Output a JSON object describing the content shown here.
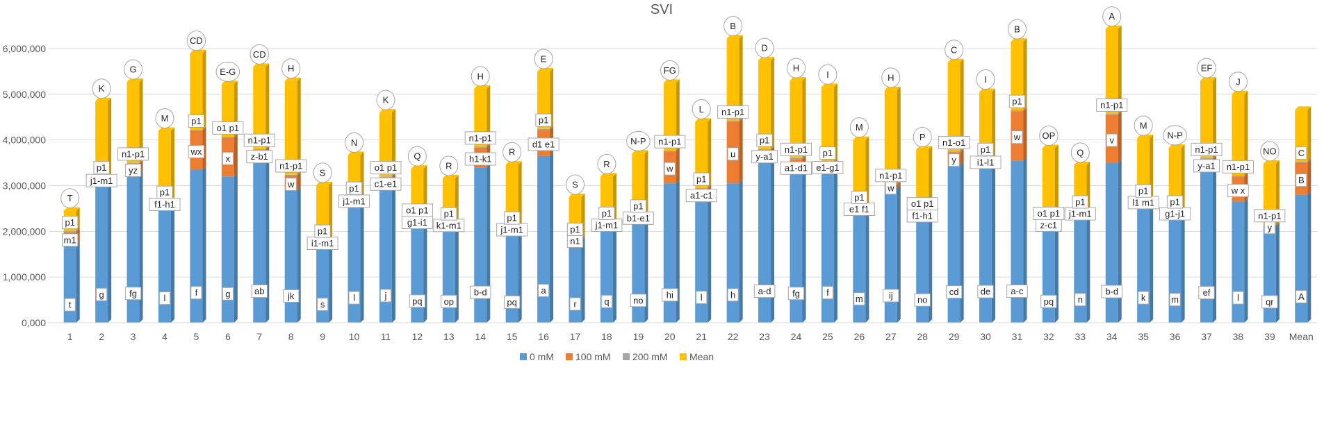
{
  "chart_data": {
    "type": "bar",
    "stacked": true,
    "title": "SVI",
    "xlabel": "",
    "ylabel": "",
    "ylim": [
      0,
      6500000
    ],
    "yticks": [
      "0,000",
      "1,000,000",
      "2,000,000",
      "3,000,000",
      "4,000,000",
      "5,000,000",
      "6,000,000"
    ],
    "categories": [
      "1",
      "2",
      "3",
      "4",
      "5",
      "6",
      "7",
      "8",
      "9",
      "10",
      "11",
      "12",
      "13",
      "14",
      "15",
      "16",
      "17",
      "18",
      "19",
      "20",
      "21",
      "22",
      "23",
      "24",
      "25",
      "26",
      "27",
      "28",
      "29",
      "30",
      "31",
      "32",
      "33",
      "34",
      "35",
      "36",
      "37",
      "38",
      "39",
      "Mean"
    ],
    "series": [
      {
        "name": "0 mM",
        "color": "#5b9bd5",
        "values": [
          1700000,
          3100000,
          3250000,
          2600000,
          3350000,
          3200000,
          3550000,
          2900000,
          1750000,
          2650000,
          2950000,
          2200000,
          2150000,
          3400000,
          2050000,
          3650000,
          1800000,
          2150000,
          2300000,
          3050000,
          2700000,
          3050000,
          3550000,
          3250000,
          3350000,
          2500000,
          2950000,
          2350000,
          3450000,
          3500000,
          3550000,
          2150000,
          2400000,
          3500000,
          2650000,
          2400000,
          3350000,
          2650000,
          2100000,
          2800000
        ],
        "labels": [
          "t",
          "g",
          "fg",
          "l",
          "f",
          "g",
          "ab",
          "jk",
          "s",
          "l",
          "j",
          "pq",
          "op",
          "b-d",
          "pq",
          "a",
          "r",
          "q",
          "no",
          "hi",
          "l",
          "h",
          "a-d",
          "fg",
          "f",
          "m",
          "ij",
          "no",
          "cd",
          "de",
          "a-c",
          "pq",
          "n",
          "b-d",
          "k",
          "m",
          "ef",
          "l",
          "qr",
          "A"
        ]
      },
      {
        "name": "100 mM",
        "color": "#ed7d31",
        "values": [
          280000,
          80000,
          230000,
          40000,
          850000,
          850000,
          230000,
          320000,
          40000,
          80000,
          230000,
          50000,
          20000,
          430000,
          30000,
          570000,
          30000,
          30000,
          40000,
          700000,
          230000,
          1350000,
          230000,
          330000,
          150000,
          30000,
          60000,
          40000,
          280000,
          80000,
          1080000,
          30000,
          30000,
          1050000,
          20000,
          30000,
          230000,
          550000,
          30000,
          700000
        ],
        "labels": [
          "m1",
          "j1-m1",
          "yz",
          "f1-h1",
          "wx",
          "x",
          "z-b1",
          "w",
          "i1-m1",
          "j1-m1",
          "c1-e1",
          "g1-i1",
          "k1-m1",
          "h1-k1",
          "j1-m1",
          "d1 e1",
          "n1",
          "j1-m1",
          "b1-e1",
          "w",
          "a1-c1",
          "u",
          "y-a1",
          "a1-d1",
          "e1-g1",
          "e1 f1",
          "w",
          "f1-h1",
          "y",
          "i1-l1",
          "w",
          "z-c1",
          "j1-m1",
          "v",
          "l1 m1",
          "g1-j1",
          "y-a1",
          "w x",
          "y",
          "B"
        ]
      },
      {
        "name": "200 mM",
        "color": "#a5a5a5",
        "values": [
          30000,
          20000,
          20000,
          20000,
          20000,
          20000,
          20000,
          20000,
          20000,
          20000,
          20000,
          20000,
          20000,
          20000,
          20000,
          20000,
          20000,
          20000,
          20000,
          20000,
          20000,
          20000,
          20000,
          20000,
          20000,
          20000,
          20000,
          20000,
          20000,
          20000,
          20000,
          20000,
          20000,
          20000,
          20000,
          20000,
          20000,
          20000,
          20000,
          30000
        ],
        "labels": [
          "p1",
          "p1",
          "n1-p1",
          "p1",
          "p1",
          "o1 p1",
          "n1-p1",
          "n1-p1",
          "p1",
          "p1",
          "o1 p1",
          "o1 p1",
          "p1",
          "n1-p1",
          "p1",
          "p1",
          "p1",
          "p1",
          "p1",
          "n1-p1",
          "p1",
          "n1-p1",
          "p1",
          "n1-p1",
          "p1",
          "p1",
          "n1-p1",
          "o1 p1",
          "n1-o1",
          "p1",
          "p1",
          "o1 p1",
          "p1",
          "n1-p1",
          "p1",
          "p1",
          "n1-p1",
          "n1-p1",
          "n1-p1",
          "C"
        ]
      },
      {
        "name": "Mean",
        "color": "#ffc000",
        "values": [
          440000,
          1650000,
          1770000,
          1540000,
          1680000,
          1150000,
          1800000,
          2050000,
          1200000,
          920000,
          1400000,
          1100000,
          970000,
          1270000,
          1360000,
          1260000,
          900000,
          1000000,
          1340000,
          1480000,
          1450000,
          1800000,
          1940000,
          1700000,
          1640000,
          1450000,
          2060000,
          1380000,
          1950000,
          1450000,
          1500000,
          1620000,
          1000000,
          1860000,
          1350000,
          1380000,
          1700000,
          1780000,
          1330000,
          1130000
        ],
        "labels": [
          "T",
          "K",
          "G",
          "M",
          "CD",
          "E-G",
          "CD",
          "H",
          "S",
          "N",
          "K",
          "Q",
          "R",
          "H",
          "R",
          "E",
          "S",
          "R",
          "N-P",
          "FG",
          "L",
          "B",
          "D",
          "H",
          "I",
          "M",
          "H",
          "P",
          "C",
          "I",
          "B",
          "OP",
          "Q",
          "A",
          "M",
          "N-P",
          "EF",
          "J",
          "NO",
          ""
        ]
      }
    ],
    "legend": {
      "position": "bottom",
      "entries": [
        "0 mM",
        "100 mM",
        "200 mM",
        "Mean"
      ]
    },
    "grid": true
  }
}
